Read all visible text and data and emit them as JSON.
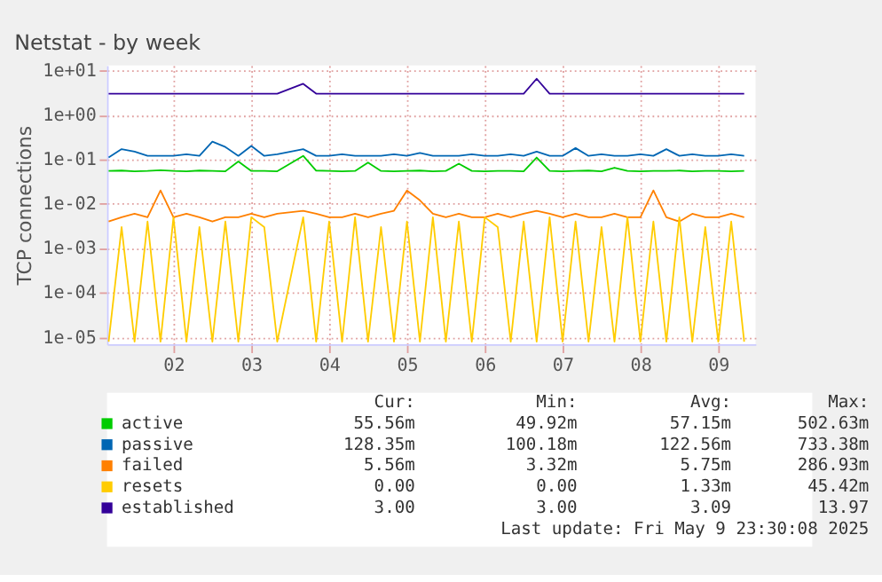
{
  "chart_data": {
    "type": "line",
    "title": "Netstat - by week",
    "ylabel": "TCP connections",
    "x": [
      "2025-05-01T04:00",
      "2025-05-01T08:00",
      "2025-05-01T12:00",
      "2025-05-01T16:00",
      "2025-05-01T20:00",
      "2025-05-02T00:00",
      "2025-05-02T04:00",
      "2025-05-02T08:00",
      "2025-05-02T12:00",
      "2025-05-02T16:00",
      "2025-05-02T20:00",
      "2025-05-03T00:00",
      "2025-05-03T04:00",
      "2025-05-03T08:00",
      "2025-05-03T16:00",
      "2025-05-03T20:00",
      "2025-05-04T00:00",
      "2025-05-04T04:00",
      "2025-05-04T08:00",
      "2025-05-04T12:00",
      "2025-05-04T16:00",
      "2025-05-04T20:00",
      "2025-05-05T00:00",
      "2025-05-05T04:00",
      "2025-05-05T08:00",
      "2025-05-05T12:00",
      "2025-05-05T16:00",
      "2025-05-05T20:00",
      "2025-05-06T00:00",
      "2025-05-06T04:00",
      "2025-05-06T08:00",
      "2025-05-06T12:00",
      "2025-05-06T16:00",
      "2025-05-06T20:00",
      "2025-05-07T00:00",
      "2025-05-07T04:00",
      "2025-05-07T08:00",
      "2025-05-07T12:00",
      "2025-05-07T16:00",
      "2025-05-07T20:00",
      "2025-05-08T00:00",
      "2025-05-08T04:00",
      "2025-05-08T08:00",
      "2025-05-08T12:00",
      "2025-05-08T16:00",
      "2025-05-08T20:00",
      "2025-05-09T00:00",
      "2025-05-09T04:00",
      "2025-05-09T08:00"
    ],
    "series": [
      {
        "name": "active",
        "color": "#00cc00",
        "values": [
          0.055,
          0.056,
          0.054,
          0.055,
          0.057,
          0.055,
          0.054,
          0.056,
          0.055,
          0.054,
          0.09,
          0.055,
          0.055,
          0.054,
          0.12,
          0.056,
          0.055,
          0.054,
          0.055,
          0.085,
          0.055,
          0.054,
          0.055,
          0.056,
          0.054,
          0.055,
          0.08,
          0.055,
          0.054,
          0.055,
          0.055,
          0.054,
          0.11,
          0.055,
          0.054,
          0.055,
          0.056,
          0.054,
          0.065,
          0.055,
          0.054,
          0.055,
          0.055,
          0.056,
          0.054,
          0.055,
          0.055,
          0.054,
          0.055
        ]
      },
      {
        "name": "passive",
        "color": "#0066b3",
        "values": [
          0.11,
          0.17,
          0.15,
          0.12,
          0.12,
          0.12,
          0.13,
          0.12,
          0.25,
          0.19,
          0.12,
          0.2,
          0.12,
          0.13,
          0.17,
          0.12,
          0.12,
          0.13,
          0.12,
          0.12,
          0.12,
          0.13,
          0.12,
          0.14,
          0.12,
          0.12,
          0.12,
          0.13,
          0.12,
          0.12,
          0.13,
          0.12,
          0.15,
          0.12,
          0.12,
          0.18,
          0.12,
          0.13,
          0.12,
          0.12,
          0.13,
          0.12,
          0.17,
          0.12,
          0.13,
          0.12,
          0.12,
          0.13,
          0.12
        ]
      },
      {
        "name": "failed",
        "color": "#ff8000",
        "values": [
          0.004,
          0.005,
          0.006,
          0.005,
          0.02,
          0.005,
          0.006,
          0.005,
          0.004,
          0.005,
          0.005,
          0.006,
          0.005,
          0.006,
          0.007,
          0.006,
          0.005,
          0.005,
          0.006,
          0.005,
          0.006,
          0.007,
          0.02,
          0.012,
          0.006,
          0.005,
          0.006,
          0.005,
          0.005,
          0.006,
          0.005,
          0.006,
          0.007,
          0.006,
          0.005,
          0.006,
          0.005,
          0.005,
          0.006,
          0.005,
          0.005,
          0.02,
          0.005,
          0.004,
          0.006,
          0.005,
          0.005,
          0.006,
          0.005
        ]
      },
      {
        "name": "resets",
        "color": "#ffcc00",
        "values": [
          8e-06,
          0.003,
          8e-06,
          0.004,
          8e-06,
          0.005,
          8e-06,
          0.003,
          8e-06,
          0.004,
          8e-06,
          0.005,
          0.003,
          8e-06,
          0.005,
          8e-06,
          0.004,
          8e-06,
          0.005,
          8e-06,
          0.003,
          8e-06,
          0.004,
          8e-06,
          0.005,
          8e-06,
          0.004,
          8e-06,
          0.005,
          0.003,
          8e-06,
          0.004,
          8e-06,
          0.005,
          8e-06,
          0.004,
          8e-06,
          0.003,
          8e-06,
          0.005,
          8e-06,
          0.004,
          8e-06,
          0.005,
          8e-06,
          0.003,
          8e-06,
          0.004,
          8e-06
        ]
      },
      {
        "name": "established",
        "color": "#330099",
        "values": [
          3.0,
          3.0,
          3.0,
          3.0,
          3.0,
          3.0,
          3.0,
          3.0,
          3.0,
          3.0,
          3.0,
          3.0,
          3.0,
          3.0,
          5.0,
          3.0,
          3.0,
          3.0,
          3.0,
          3.0,
          3.0,
          3.0,
          3.0,
          3.0,
          3.0,
          3.0,
          3.0,
          3.0,
          3.0,
          3.0,
          3.0,
          3.0,
          6.5,
          3.0,
          3.0,
          3.0,
          3.0,
          3.0,
          3.0,
          3.0,
          3.0,
          3.0,
          3.0,
          3.0,
          3.0,
          3.0,
          3.0,
          3.0,
          3.0
        ]
      }
    ],
    "log": "y",
    "ylim": [
      7e-06,
      13
    ],
    "yticks": [
      {
        "value": 1e-05,
        "label": "1e-05"
      },
      {
        "value": 0.0001,
        "label": "1e-04"
      },
      {
        "value": 0.001,
        "label": "1e-03"
      },
      {
        "value": 0.01,
        "label": "1e-02"
      },
      {
        "value": 0.1,
        "label": "1e-01"
      },
      {
        "value": 1,
        "label": "1e+00"
      },
      {
        "value": 10,
        "label": "1e+01"
      }
    ],
    "xlim": [
      "2025-05-01T03:30",
      "2025-05-09T11:30"
    ],
    "xticks": [
      {
        "value": "2025-05-02",
        "label": "02"
      },
      {
        "value": "2025-05-03",
        "label": "03"
      },
      {
        "value": "2025-05-04",
        "label": "04"
      },
      {
        "value": "2025-05-05",
        "label": "05"
      },
      {
        "value": "2025-05-06",
        "label": "06"
      },
      {
        "value": "2025-05-07",
        "label": "07"
      },
      {
        "value": "2025-05-08",
        "label": "08"
      },
      {
        "value": "2025-05-09",
        "label": "09"
      }
    ],
    "grid": true,
    "legend": "bottom",
    "line_style": "solid",
    "marker": "none",
    "annotations": [
      "Cur:",
      "Min:",
      "Avg:",
      "Max:",
      "55.56m",
      "49.92m",
      "57.15m",
      "502.63m",
      "128.35m",
      "100.18m",
      "122.56m",
      "733.38m",
      "5.56m",
      "3.32m",
      "5.75m",
      "286.93m",
      "0.00",
      "0.00",
      "1.33m",
      "45.42m",
      "3.00",
      "3.00",
      "3.09",
      "13.97",
      "Last update: Fri May  9 23:30:08 2025"
    ]
  }
}
